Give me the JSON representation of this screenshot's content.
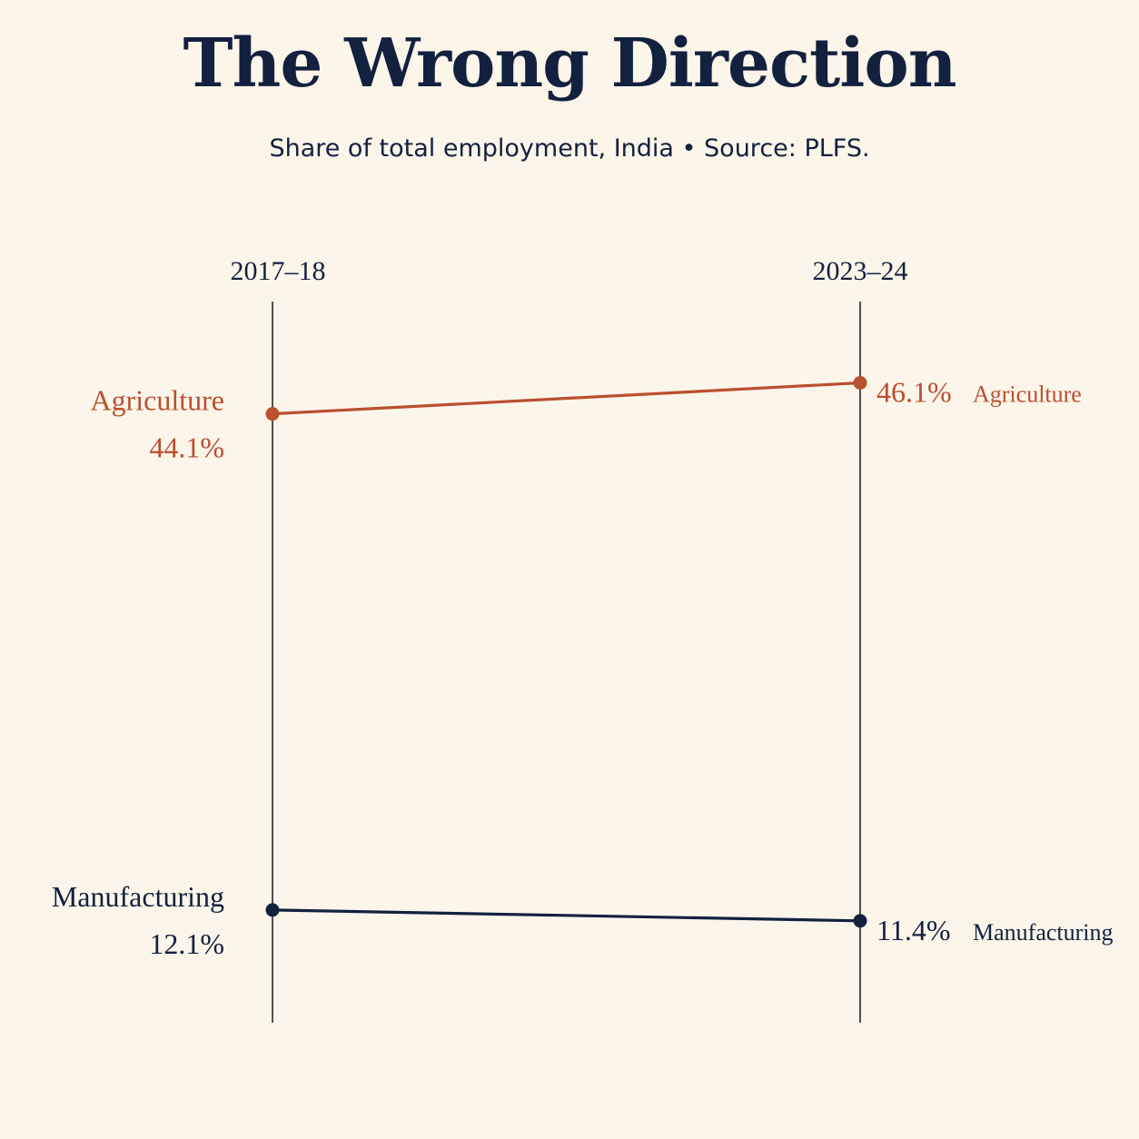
{
  "header": {
    "title": "The Wrong Direction",
    "subtitle": "Share of total employment, India • Source: PLFS."
  },
  "colors": {
    "background": "#fcf5ea",
    "navy": "#13213f",
    "rust": "#b9502f",
    "axis": "#1a1a1a"
  },
  "chart_data": {
    "type": "line",
    "subtype": "slope",
    "x": [
      "2017–18",
      "2023–24"
    ],
    "series": [
      {
        "name": "Agriculture",
        "values": [
          44.1,
          46.1
        ],
        "value_labels": [
          "44.1%",
          "46.1%"
        ],
        "color": "#b9502f"
      },
      {
        "name": "Manufacturing",
        "values": [
          12.1,
          11.4
        ],
        "value_labels": [
          "12.1%",
          "11.4%"
        ],
        "color": "#13213f"
      }
    ],
    "title": "The Wrong Direction",
    "subtitle": "Share of total employment, India • Source: PLFS.",
    "ylim": [
      6,
      49
    ],
    "grid": false,
    "legend": "none"
  }
}
